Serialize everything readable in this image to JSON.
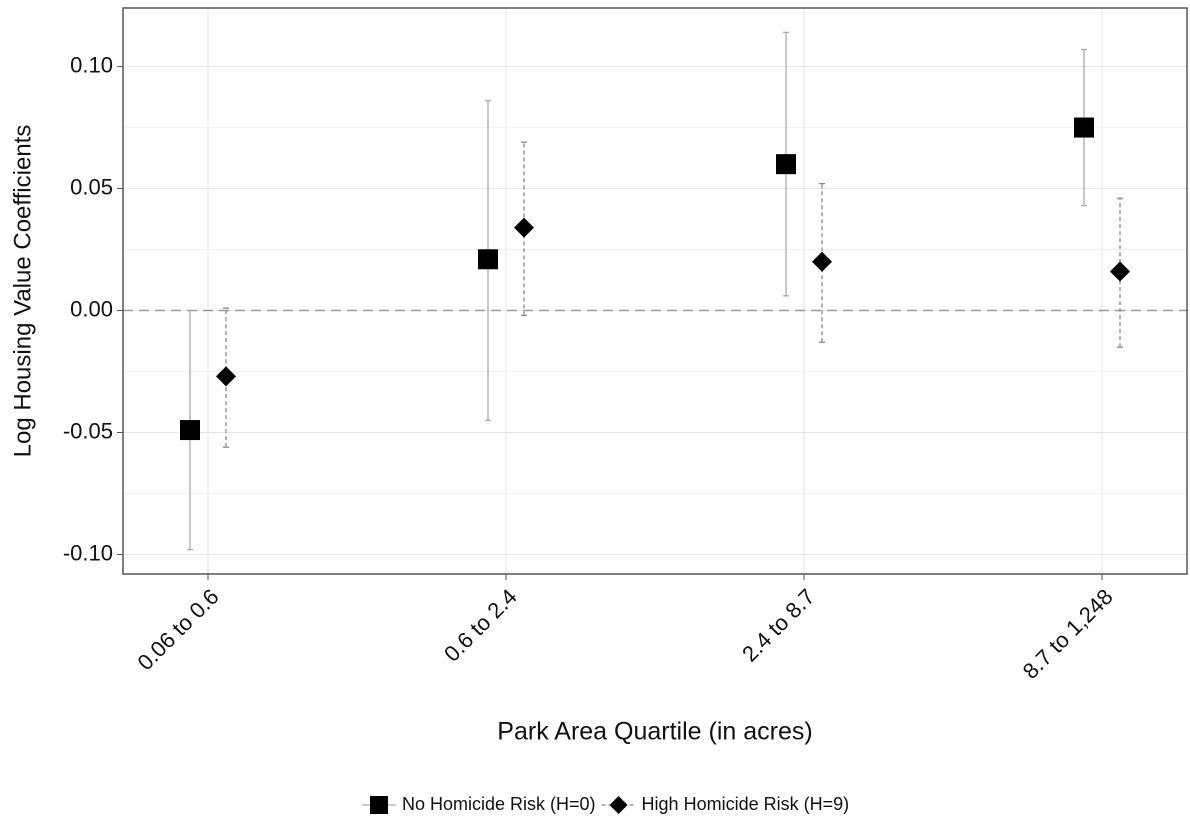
{
  "chart_data": {
    "type": "errorpoint",
    "x_label": "Park Area Quartile (in acres)",
    "y_label": "Log Housing Value Coefficients",
    "categories": [
      "0.06 to 0.6",
      "0.6 to 2.4",
      "2.4 to 8.7",
      "8.7 to 1,248"
    ],
    "series": [
      {
        "name": "No Homicide Risk (H=0)",
        "color": "#000000",
        "marker": "square",
        "line": "solid",
        "values": [
          -0.049,
          0.021,
          0.06,
          0.075
        ],
        "lower": [
          -0.098,
          -0.045,
          0.006,
          0.043
        ],
        "upper": [
          0.0,
          0.086,
          0.114,
          0.107
        ]
      },
      {
        "name": "High Homicide Risk (H=9)",
        "color": "#000000",
        "marker": "diamond",
        "line": "dashed",
        "values": [
          -0.027,
          0.034,
          0.02,
          0.016
        ],
        "lower": [
          -0.056,
          -0.002,
          -0.013,
          -0.015
        ],
        "upper": [
          0.001,
          0.069,
          0.052,
          0.046
        ]
      }
    ],
    "reference_line": 0,
    "ylim": [
      -0.108,
      0.124
    ],
    "yticks": [
      {
        "value": -0.1,
        "label": "-0.10"
      },
      {
        "value": -0.05,
        "label": "-0.05"
      },
      {
        "value": 0,
        "label": "0.00"
      },
      {
        "value": 0.05,
        "label": "0.05"
      },
      {
        "value": 0.1,
        "label": "0.10"
      }
    ],
    "grid": true,
    "legend": "bottom"
  }
}
